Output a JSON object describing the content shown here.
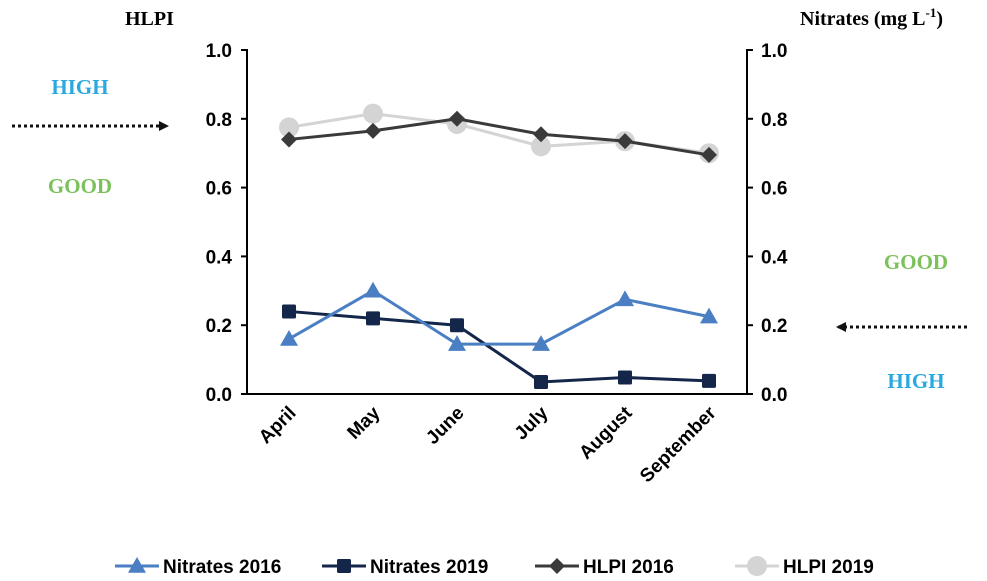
{
  "chart_data": {
    "type": "line",
    "categories": [
      "April",
      "May",
      "June",
      "July",
      "August",
      "September"
    ],
    "left_axis": {
      "title": "HLPI",
      "ylim": [
        0,
        1.0
      ],
      "ticks": [
        "0.0",
        "0.2",
        "0.4",
        "0.6",
        "0.8",
        "1.0"
      ]
    },
    "right_axis": {
      "title_main": "Nitrates (mg L",
      "title_sup": "-1",
      "title_end": ")",
      "ylim": [
        0,
        1.0
      ],
      "ticks": [
        "0.0",
        "0.2",
        "0.4",
        "0.6",
        "0.8",
        "1.0"
      ]
    },
    "grid": false,
    "legend_position": "bottom",
    "series": [
      {
        "name": "Nitrates 2016",
        "axis": "right",
        "marker": "triangle",
        "color": "#4a7fc4",
        "values": [
          0.16,
          0.3,
          0.145,
          0.145,
          0.275,
          0.225
        ]
      },
      {
        "name": "Nitrates 2019",
        "axis": "right",
        "marker": "square",
        "color": "#14274a",
        "values": [
          0.24,
          0.22,
          0.2,
          0.035,
          0.048,
          0.038
        ]
      },
      {
        "name": "HLPI 2016",
        "axis": "left",
        "marker": "diamond",
        "color": "#3a3a3a",
        "values": [
          0.74,
          0.765,
          0.8,
          0.755,
          0.735,
          0.695
        ]
      },
      {
        "name": "HLPI 2019",
        "axis": "left",
        "marker": "circle",
        "color": "#d4d4d4",
        "values": [
          0.775,
          0.815,
          0.785,
          0.72,
          0.735,
          0.7
        ]
      }
    ],
    "annotations": {
      "left_high": {
        "text": "HIGH",
        "color": "#2aa9e0"
      },
      "left_good": {
        "text": "GOOD",
        "color": "#7cc25c"
      },
      "right_good": {
        "text": "GOOD",
        "color": "#7cc25c"
      },
      "right_high": {
        "text": "HIGH",
        "color": "#2aa9e0"
      }
    }
  }
}
